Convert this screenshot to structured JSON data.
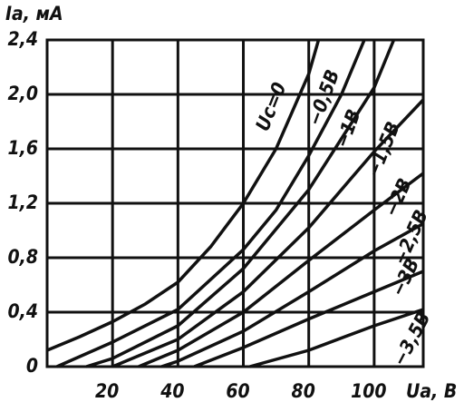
{
  "chart_data": {
    "type": "line",
    "y_label": "Iа, мА",
    "x_label": "Uа, В",
    "xlim": [
      0,
      115
    ],
    "ylim": [
      0,
      2.4
    ],
    "xticks": [
      20,
      40,
      60,
      80,
      100
    ],
    "yticks": [
      0,
      {
        "value": 0.4,
        "label": "0,4"
      },
      {
        "value": 0.8,
        "label": "0,8"
      },
      {
        "value": 1.2,
        "label": "1,2"
      },
      {
        "value": 1.6,
        "label": "1,6"
      },
      {
        "value": 2.0,
        "label": "2,0"
      },
      {
        "value": 2.4,
        "label": "2,4"
      }
    ],
    "grid": true,
    "series": [
      {
        "name": "Uc=0",
        "color": "#111111",
        "x": [
          0,
          10,
          20,
          30,
          40,
          50,
          60,
          70,
          80,
          83
        ],
        "values": [
          0.12,
          0.22,
          0.33,
          0.46,
          0.62,
          0.88,
          1.2,
          1.6,
          2.15,
          2.4
        ]
      },
      {
        "name": "−0,5В",
        "color": "#111111",
        "x": [
          3,
          20,
          40,
          60,
          70,
          80,
          90,
          97
        ],
        "values": [
          0,
          0.18,
          0.42,
          0.86,
          1.15,
          1.55,
          2.0,
          2.4
        ]
      },
      {
        "name": "−1В",
        "color": "#111111",
        "x": [
          12,
          20,
          40,
          60,
          80,
          100,
          106
        ],
        "values": [
          0,
          0.06,
          0.3,
          0.72,
          1.3,
          2.05,
          2.4
        ]
      },
      {
        "name": "−1,5В",
        "color": "#111111",
        "x": [
          20,
          40,
          60,
          80,
          100,
          115
        ],
        "values": [
          0,
          0.2,
          0.55,
          1.02,
          1.58,
          1.96
        ]
      },
      {
        "name": "−2В",
        "color": "#111111",
        "x": [
          28,
          40,
          60,
          80,
          100,
          115
        ],
        "values": [
          0,
          0.12,
          0.4,
          0.78,
          1.15,
          1.42
        ]
      },
      {
        "name": "−2,5В",
        "color": "#111111",
        "x": [
          35,
          40,
          60,
          80,
          100,
          115
        ],
        "values": [
          0,
          0.04,
          0.26,
          0.55,
          0.85,
          1.05
        ]
      },
      {
        "name": "−3В",
        "color": "#111111",
        "x": [
          45,
          60,
          80,
          100,
          115
        ],
        "values": [
          0,
          0.14,
          0.35,
          0.55,
          0.7
        ]
      },
      {
        "name": "−3,5В",
        "color": "#111111",
        "x": [
          62,
          80,
          100,
          115
        ],
        "values": [
          0,
          0.12,
          0.3,
          0.42
        ]
      }
    ]
  }
}
